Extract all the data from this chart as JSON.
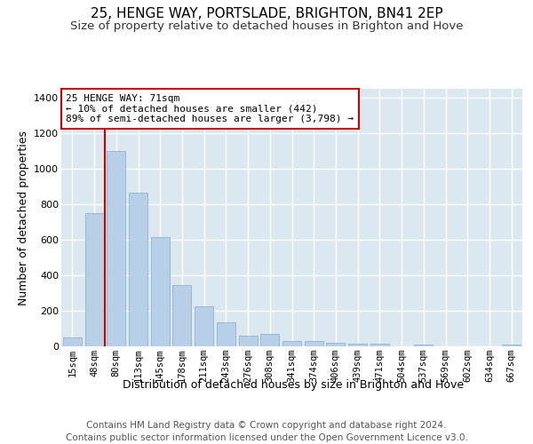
{
  "title1": "25, HENGE WAY, PORTSLADE, BRIGHTON, BN41 2EP",
  "title2": "Size of property relative to detached houses in Brighton and Hove",
  "xlabel": "Distribution of detached houses by size in Brighton and Hove",
  "ylabel": "Number of detached properties",
  "footer1": "Contains HM Land Registry data © Crown copyright and database right 2024.",
  "footer2": "Contains public sector information licensed under the Open Government Licence v3.0.",
  "categories": [
    "15sqm",
    "48sqm",
    "80sqm",
    "113sqm",
    "145sqm",
    "178sqm",
    "211sqm",
    "243sqm",
    "276sqm",
    "308sqm",
    "341sqm",
    "374sqm",
    "406sqm",
    "439sqm",
    "471sqm",
    "504sqm",
    "537sqm",
    "569sqm",
    "602sqm",
    "634sqm",
    "667sqm"
  ],
  "values": [
    50,
    750,
    1100,
    865,
    615,
    345,
    225,
    135,
    60,
    70,
    30,
    30,
    22,
    15,
    15,
    0,
    12,
    0,
    0,
    0,
    12
  ],
  "bar_color": "#b8cfe8",
  "bar_edge_color": "#88aacc",
  "vline_color": "#cc0000",
  "annotation_text": "25 HENGE WAY: 71sqm\n← 10% of detached houses are smaller (442)\n89% of semi-detached houses are larger (3,798) →",
  "annotation_box_color": "#ffffff",
  "annotation_box_edge": "#cc0000",
  "ylim": [
    0,
    1450
  ],
  "yticks": [
    0,
    200,
    400,
    600,
    800,
    1000,
    1200,
    1400
  ],
  "fig_bg": "#ffffff",
  "plot_bg": "#dce8f0",
  "grid_color": "#ffffff",
  "title1_fontsize": 11,
  "title2_fontsize": 9.5,
  "xlabel_fontsize": 9,
  "ylabel_fontsize": 9,
  "footer_fontsize": 7.5,
  "annot_fontsize": 8
}
